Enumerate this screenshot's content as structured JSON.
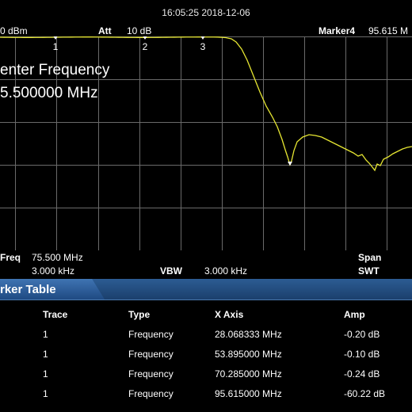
{
  "timestamp": "16:05:25 2018-12-06",
  "top_bar": {
    "ref_level": "0 dBm",
    "att_label": "Att",
    "att_value": "10 dB",
    "marker_label": "Marker4",
    "marker_value": "95.615 M"
  },
  "overlay": {
    "line1": "enter Frequency",
    "line2": "5.500000 MHz"
  },
  "markers": [
    "1",
    "2",
    "3"
  ],
  "bottom_bar": {
    "freq_label": "Freq",
    "freq_value": "75.500 MHz",
    "rbw_value": "3.000 kHz",
    "vbw_label": "VBW",
    "vbw_value": "3.000 kHz",
    "span_label": "Span",
    "swt_label": "SWT"
  },
  "marker_table": {
    "title": "rker Table",
    "headers": [
      "Trace",
      "Type",
      "X Axis",
      "Amp"
    ],
    "rows": [
      [
        "1",
        "Frequency",
        "28.068333 MHz",
        "-0.20 dB"
      ],
      [
        "1",
        "Frequency",
        "53.895000 MHz",
        "-0.10 dB"
      ],
      [
        "1",
        "Frequency",
        "70.285000 MHz",
        "-0.24 dB"
      ],
      [
        "1",
        "Frequency",
        "95.615000 MHz",
        "-60.22 dB"
      ]
    ]
  },
  "colors": {
    "trace": "#e6e632",
    "grid": "#6a6a6a",
    "background": "#000000",
    "table_header": "#1f4a82"
  }
}
